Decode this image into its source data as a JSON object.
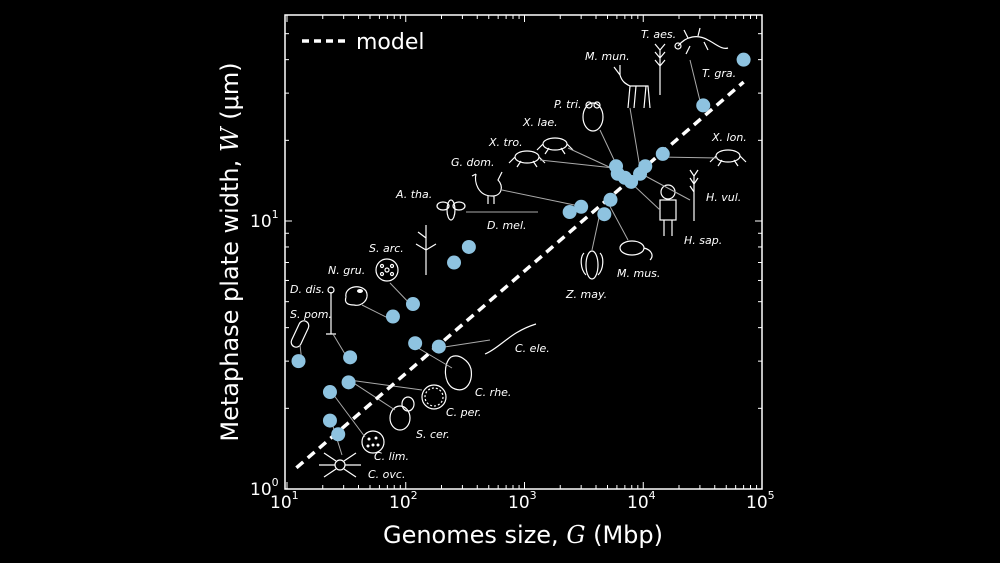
{
  "chart_data": {
    "type": "scatter",
    "title": "",
    "xlabel_main": "Genomes size, ",
    "xlabel_var": "G",
    "xlabel_unit": " (Mbp)",
    "ylabel_main": "Metaphase plate width, ",
    "ylabel_var": "W",
    "ylabel_unit": " (μm)",
    "x_scale": "log",
    "y_scale": "log",
    "xlim": [
      10,
      100000
    ],
    "ylim": [
      1,
      55
    ],
    "x_ticks": [
      {
        "base": "10",
        "exp": "1",
        "value": 10
      },
      {
        "base": "10",
        "exp": "2",
        "value": 100
      },
      {
        "base": "10",
        "exp": "3",
        "value": 1000
      },
      {
        "base": "10",
        "exp": "4",
        "value": 10000
      },
      {
        "base": "10",
        "exp": "5",
        "value": 100000
      }
    ],
    "y_ticks": [
      {
        "base": "10",
        "exp": "0",
        "value": 1
      },
      {
        "base": "10",
        "exp": "1",
        "value": 10
      }
    ],
    "grid": false,
    "legend": {
      "label": "model",
      "style": "dashed",
      "placement": "top-left"
    },
    "point_color": "#8ec3e0",
    "model": {
      "x": [
        12,
        70000
      ],
      "y": [
        1.2,
        33
      ]
    },
    "points": [
      {
        "species": "S. pom.",
        "x": 12.5,
        "y": 3.0
      },
      {
        "species": "D. dis.",
        "x": 34,
        "y": 3.1
      },
      {
        "species": "C. ovc.",
        "x": 27,
        "y": 1.6
      },
      {
        "species": "C. lim.",
        "x": 23,
        "y": 1.8
      },
      {
        "species": "S. cer.",
        "x": 23,
        "y": 2.3
      },
      {
        "species": "C. per.",
        "x": 33,
        "y": 2.5
      },
      {
        "species": "C. rhe.",
        "x": 120,
        "y": 3.5
      },
      {
        "species": "C. ele.",
        "x": 190,
        "y": 3.4
      },
      {
        "species": "N. gru.",
        "x": 78,
        "y": 4.4
      },
      {
        "species": "S. arc.",
        "x": 115,
        "y": 4.9
      },
      {
        "species": "A. tha.",
        "x": 255,
        "y": 7.0
      },
      {
        "species": "A. tha.",
        "x": 340,
        "y": 8.0
      },
      {
        "species": "D. mel.",
        "x": 2400,
        "y": 10.8
      },
      {
        "species": "G. dom.",
        "x": 3000,
        "y": 11.3
      },
      {
        "species": "Z. may.",
        "x": 4700,
        "y": 10.6
      },
      {
        "species": "M. mus.",
        "x": 5300,
        "y": 12.0
      },
      {
        "species": "X. tro.",
        "x": 6100,
        "y": 15.0
      },
      {
        "species": "X. lae.",
        "x": 7000,
        "y": 14.5
      },
      {
        "species": "P. tri.",
        "x": 5900,
        "y": 16.0
      },
      {
        "species": "H. sap.",
        "x": 7900,
        "y": 14.0
      },
      {
        "species": "H. vul.",
        "x": 9400,
        "y": 15.0
      },
      {
        "species": "M. mun.",
        "x": 10400,
        "y": 16.0
      },
      {
        "species": "X. lon.",
        "x": 14600,
        "y": 17.8
      },
      {
        "species": "T. aes.",
        "x": 32000,
        "y": 27.0
      },
      {
        "species": "T. gra.",
        "x": 70000,
        "y": 40.0
      }
    ],
    "labels": [
      "T. aes.",
      "M. mun.",
      "T. gra.",
      "P. tri.",
      "X. lae.",
      "X. tro.",
      "X. lon.",
      "G. dom.",
      "H. vul.",
      "A. tha.",
      "D. mel.",
      "H. sap.",
      "S. arc.",
      "N. gru.",
      "M. mus.",
      "D. dis.",
      "Z. may.",
      "S. pom.",
      "C. ele.",
      "C. rhe.",
      "C. per.",
      "S. cer.",
      "C. lim.",
      "C. ovc."
    ]
  }
}
